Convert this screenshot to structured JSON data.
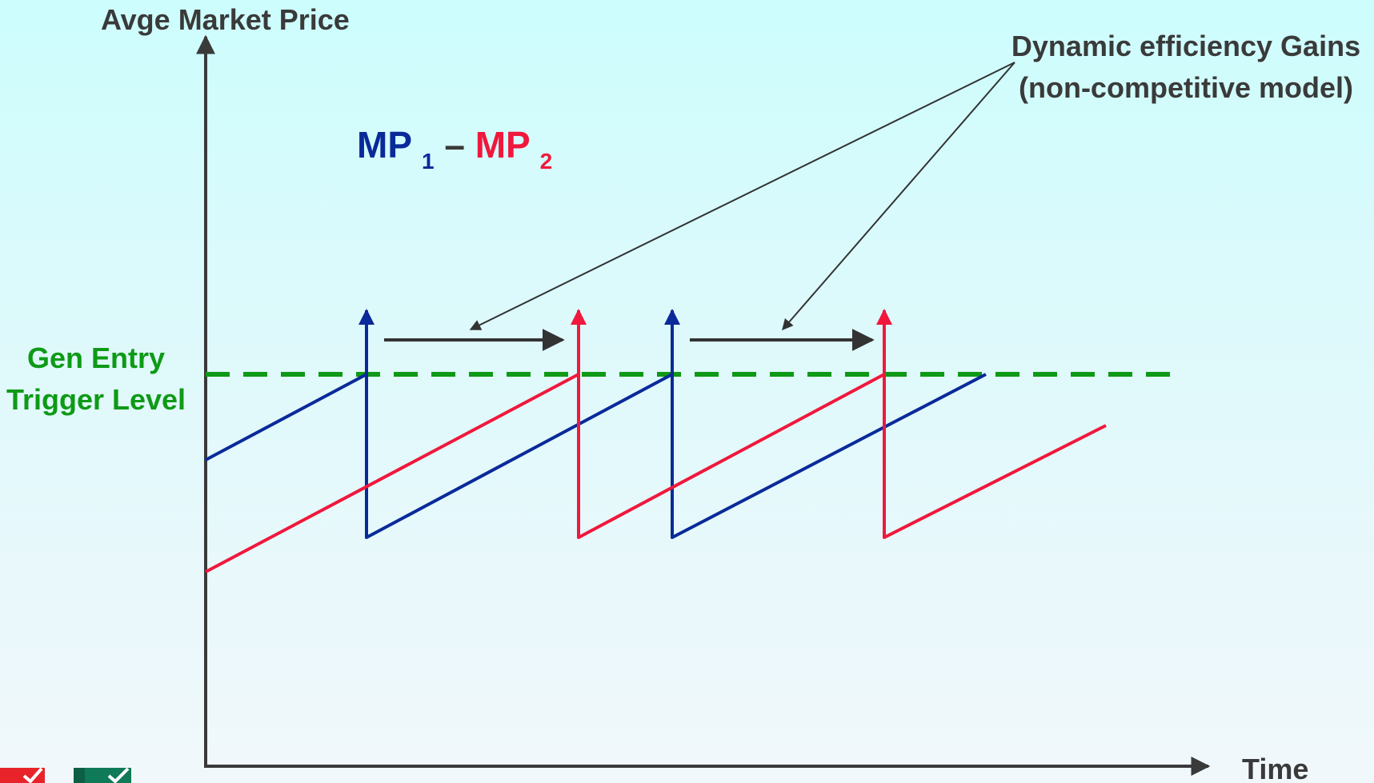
{
  "labels": {
    "y_axis": "Avge Market Price",
    "x_axis": "Time",
    "trigger_line1": "Gen Entry",
    "trigger_line2": "Trigger Level",
    "gains_line1": "Dynamic efficiency Gains",
    "gains_line2": "(non-competitive model)",
    "mp1_text": "MP",
    "mp1_sub": "1",
    "dash": " – ",
    "mp2_text": "MP",
    "mp2_sub": "2"
  },
  "colors": {
    "mp1": "#0a2a9a",
    "mp2": "#f0183c",
    "trigger": "#0e9a16",
    "axis": "#3a3a3a",
    "annotation": "#333333",
    "text_dark": "#3a3a3a"
  },
  "logos": {
    "left_icon": "checkmark-red-logo-icon",
    "right_icon": "checkmark-green-logo-icon"
  }
}
